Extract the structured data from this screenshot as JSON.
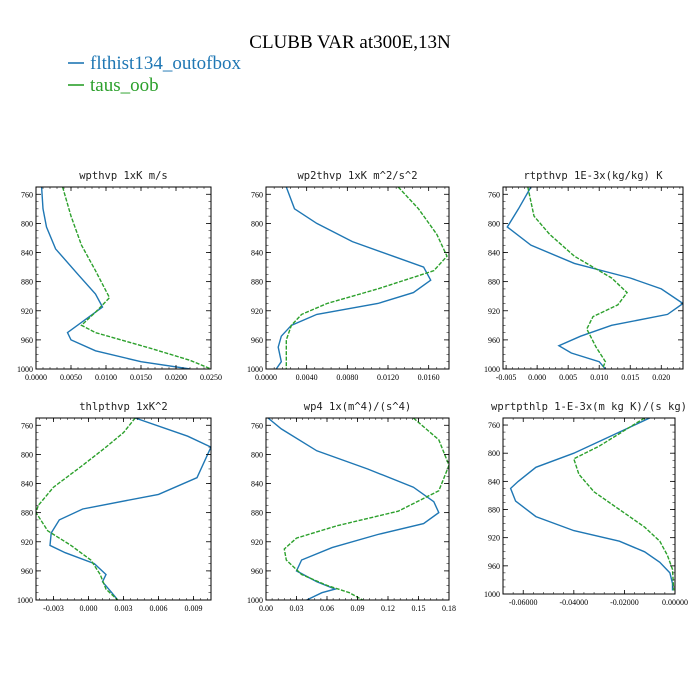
{
  "figure": {
    "title": "CLUBB VAR at300E,13N",
    "legend": [
      {
        "name": "flthist134_outofbox",
        "color": "#1f77b4"
      },
      {
        "name": "taus_oob",
        "color": "#2ca02c"
      }
    ]
  },
  "chart_data": [
    {
      "type": "line",
      "title": "wpthvp  1xK m/s",
      "xlim": [
        0.0,
        0.025
      ],
      "ylim": [
        1000,
        750
      ],
      "xticks": [
        "0.0000",
        "0.0050",
        "0.0100",
        "0.0150",
        "0.0200",
        "0.0250"
      ],
      "yticks": [
        "760",
        "800",
        "840",
        "880",
        "920",
        "960",
        "1000"
      ],
      "series": [
        {
          "name": "flthist134_outofbox",
          "color": "#1f77b4",
          "dash": "none",
          "points": [
            [
              0.0008,
              750
            ],
            [
              0.001,
              780
            ],
            [
              0.0015,
              805
            ],
            [
              0.0028,
              835
            ],
            [
              0.006,
              870
            ],
            [
              0.0085,
              897
            ],
            [
              0.0095,
              915
            ],
            [
              0.0045,
              950
            ],
            [
              0.005,
              960
            ],
            [
              0.0085,
              975
            ],
            [
              0.015,
              990
            ],
            [
              0.022,
              1000
            ]
          ]
        },
        {
          "name": "taus_oob",
          "color": "#2ca02c",
          "dash": "4,1.5",
          "points": [
            [
              0.0038,
              750
            ],
            [
              0.005,
              790
            ],
            [
              0.0065,
              830
            ],
            [
              0.0085,
              865
            ],
            [
              0.0105,
              902
            ],
            [
              0.0085,
              922
            ],
            [
              0.0065,
              940
            ],
            [
              0.0085,
              950
            ],
            [
              0.0165,
              972
            ],
            [
              0.022,
              988
            ],
            [
              0.025,
              1000
            ]
          ]
        }
      ]
    },
    {
      "type": "line",
      "title": "wp2thvp  1xK m^2/s^2",
      "xlim": [
        0.0,
        0.018
      ],
      "ylim": [
        1000,
        750
      ],
      "xticks": [
        "0.0000",
        "0.0040",
        "0.0080",
        "0.0120",
        "0.0160"
      ],
      "yticks": [
        "760",
        "800",
        "840",
        "880",
        "920",
        "960",
        "1000"
      ],
      "series": [
        {
          "name": "flthist134_outofbox",
          "color": "#1f77b4",
          "dash": "none",
          "points": [
            [
              0.002,
              750
            ],
            [
              0.0028,
              780
            ],
            [
              0.005,
              800
            ],
            [
              0.0085,
              825
            ],
            [
              0.0125,
              845
            ],
            [
              0.0155,
              860
            ],
            [
              0.0162,
              878
            ],
            [
              0.0145,
              895
            ],
            [
              0.011,
              910
            ],
            [
              0.005,
              925
            ],
            [
              0.0025,
              940
            ],
            [
              0.0015,
              955
            ],
            [
              0.0012,
              970
            ],
            [
              0.0015,
              990
            ],
            [
              0.001,
              1000
            ]
          ]
        },
        {
          "name": "taus_oob",
          "color": "#2ca02c",
          "dash": "4,1.5",
          "points": [
            [
              0.013,
              750
            ],
            [
              0.015,
              780
            ],
            [
              0.0168,
              815
            ],
            [
              0.0178,
              845
            ],
            [
              0.0165,
              865
            ],
            [
              0.011,
              890
            ],
            [
              0.006,
              910
            ],
            [
              0.0035,
              925
            ],
            [
              0.0025,
              940
            ],
            [
              0.002,
              960
            ],
            [
              0.002,
              1000
            ]
          ]
        }
      ]
    },
    {
      "type": "line",
      "title": "rtpthvp  1E-3x(kg/kg) K",
      "xlim": [
        -0.0055,
        0.0235
      ],
      "ylim": [
        1000,
        750
      ],
      "xticks": [
        "-0.005",
        "0.000",
        "0.005",
        "0.010",
        "0.015",
        "0.020"
      ],
      "yticks": [
        "760",
        "800",
        "840",
        "880",
        "920",
        "960",
        "1000"
      ],
      "series": [
        {
          "name": "flthist134_outofbox",
          "color": "#1f77b4",
          "dash": "none",
          "points": [
            [
              -0.001,
              750
            ],
            [
              -0.003,
              780
            ],
            [
              -0.0048,
              805
            ],
            [
              -0.001,
              830
            ],
            [
              0.006,
              855
            ],
            [
              0.015,
              875
            ],
            [
              0.02,
              890
            ],
            [
              0.0235,
              910
            ],
            [
              0.021,
              925
            ],
            [
              0.012,
              940
            ],
            [
              0.007,
              955
            ],
            [
              0.0035,
              968
            ],
            [
              0.0055,
              978
            ],
            [
              0.01,
              990
            ],
            [
              0.011,
              1000
            ]
          ]
        },
        {
          "name": "taus_oob",
          "color": "#2ca02c",
          "dash": "4,1.5",
          "points": [
            [
              -0.0015,
              750
            ],
            [
              -0.001,
              770
            ],
            [
              -0.0005,
              790
            ],
            [
              0.002,
              815
            ],
            [
              0.006,
              845
            ],
            [
              0.012,
              875
            ],
            [
              0.0145,
              895
            ],
            [
              0.013,
              912
            ],
            [
              0.009,
              928
            ],
            [
              0.008,
              945
            ],
            [
              0.0095,
              970
            ],
            [
              0.011,
              990
            ],
            [
              0.0105,
              1000
            ]
          ]
        }
      ]
    },
    {
      "type": "line",
      "title": "thlpthvp  1xK^2",
      "xlim": [
        -0.0045,
        0.0105
      ],
      "ylim": [
        1000,
        750
      ],
      "xticks": [
        "-0.003",
        "0.000",
        "0.003",
        "0.006",
        "0.009"
      ],
      "yticks": [
        "760",
        "800",
        "840",
        "880",
        "920",
        "960",
        "1000"
      ],
      "series": [
        {
          "name": "flthist134_outofbox",
          "color": "#1f77b4",
          "dash": "none",
          "points": [
            [
              0.004,
              750
            ],
            [
              0.0085,
              775
            ],
            [
              0.0105,
              790
            ],
            [
              0.0093,
              832
            ],
            [
              0.006,
              855
            ],
            [
              -0.0005,
              875
            ],
            [
              -0.0025,
              890
            ],
            [
              -0.0032,
              908
            ],
            [
              -0.0033,
              925
            ],
            [
              -0.002,
              935
            ],
            [
              0.0005,
              950
            ],
            [
              0.0015,
              965
            ],
            [
              0.0012,
              975
            ],
            [
              0.002,
              990
            ],
            [
              0.0025,
              1000
            ]
          ]
        },
        {
          "name": "taus_oob",
          "color": "#2ca02c",
          "dash": "4,1.5",
          "points": [
            [
              0.004,
              750
            ],
            [
              0.003,
              770
            ],
            [
              0.0015,
              790
            ],
            [
              -0.0005,
              815
            ],
            [
              -0.003,
              845
            ],
            [
              -0.0043,
              870
            ],
            [
              -0.0045,
              880
            ],
            [
              -0.0035,
              905
            ],
            [
              -0.0015,
              925
            ],
            [
              0.0002,
              945
            ],
            [
              0.001,
              965
            ],
            [
              0.0015,
              985
            ],
            [
              0.0025,
              1000
            ]
          ]
        }
      ]
    },
    {
      "type": "line",
      "title": "wp4  1x(m^4)/(s^4)",
      "xlim": [
        0.0,
        0.18
      ],
      "ylim": [
        1000,
        750
      ],
      "xticks": [
        "0.00",
        "0.03",
        "0.06",
        "0.09",
        "0.12",
        "0.15",
        "0.18"
      ],
      "yticks": [
        "760",
        "800",
        "840",
        "880",
        "920",
        "960",
        "1000"
      ],
      "series": [
        {
          "name": "flthist134_outofbox",
          "color": "#1f77b4",
          "dash": "none",
          "points": [
            [
              0.002,
              750
            ],
            [
              0.015,
              765
            ],
            [
              0.05,
              795
            ],
            [
              0.1,
              820
            ],
            [
              0.145,
              845
            ],
            [
              0.165,
              865
            ],
            [
              0.17,
              880
            ],
            [
              0.155,
              895
            ],
            [
              0.11,
              910
            ],
            [
              0.065,
              928
            ],
            [
              0.035,
              945
            ],
            [
              0.03,
              960
            ],
            [
              0.05,
              975
            ],
            [
              0.068,
              985
            ],
            [
              0.055,
              990
            ],
            [
              0.04,
              1000
            ]
          ]
        },
        {
          "name": "taus_oob",
          "color": "#2ca02c",
          "dash": "4,1.5",
          "points": [
            [
              0.145,
              750
            ],
            [
              0.17,
              780
            ],
            [
              0.18,
              815
            ],
            [
              0.17,
              850
            ],
            [
              0.13,
              878
            ],
            [
              0.07,
              898
            ],
            [
              0.03,
              915
            ],
            [
              0.018,
              930
            ],
            [
              0.02,
              945
            ],
            [
              0.035,
              965
            ],
            [
              0.06,
              980
            ],
            [
              0.082,
              990
            ],
            [
              0.095,
              1000
            ]
          ]
        }
      ]
    },
    {
      "type": "line",
      "title": "wprtpthlp  1-E-3x(m kg K)/(s kg)",
      "xlim": [
        -0.068,
        0.0
      ],
      "ylim": [
        1000,
        750
      ],
      "xticks": [
        "-0.06000",
        "-0.04000",
        "-0.02000",
        "0.00000"
      ],
      "yticks": [
        "760",
        "800",
        "840",
        "880",
        "920",
        "960",
        "1000"
      ],
      "series": [
        {
          "name": "flthist134_outofbox",
          "color": "#1f77b4",
          "dash": "none",
          "points": [
            [
              -0.01,
              750
            ],
            [
              -0.025,
              775
            ],
            [
              -0.04,
              800
            ],
            [
              -0.055,
              820
            ],
            [
              -0.062,
              840
            ],
            [
              -0.065,
              850
            ],
            [
              -0.063,
              868
            ],
            [
              -0.055,
              890
            ],
            [
              -0.04,
              910
            ],
            [
              -0.022,
              925
            ],
            [
              -0.012,
              940
            ],
            [
              -0.006,
              955
            ],
            [
              -0.002,
              970
            ],
            [
              -0.001,
              985
            ],
            [
              -0.001,
              995
            ]
          ]
        },
        {
          "name": "taus_oob",
          "color": "#2ca02c",
          "dash": "4,1.5",
          "points": [
            [
              -0.012,
              750
            ],
            [
              -0.03,
              790
            ],
            [
              -0.04,
              808
            ],
            [
              -0.038,
              830
            ],
            [
              -0.032,
              855
            ],
            [
              -0.022,
              880
            ],
            [
              -0.012,
              905
            ],
            [
              -0.006,
              925
            ],
            [
              -0.003,
              945
            ],
            [
              -0.001,
              965
            ],
            [
              -0.0005,
              995
            ]
          ]
        }
      ]
    }
  ]
}
